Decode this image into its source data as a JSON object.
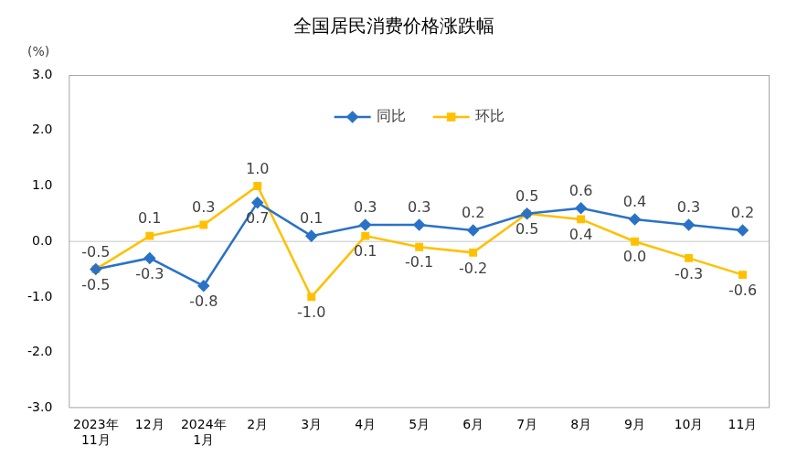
{
  "chart_data": {
    "type": "line",
    "title": "全国居民消费价格涨跌幅",
    "ylabel": "(%)",
    "categories": [
      [
        "2023年",
        "11月"
      ],
      "12月",
      [
        "2024年",
        "1月"
      ],
      "2月",
      "3月",
      "4月",
      "5月",
      "6月",
      "7月",
      "8月",
      "9月",
      "10月",
      "11月"
    ],
    "series": [
      {
        "name": "同比",
        "color": "#2a72c6",
        "marker": "diamond",
        "values": [
          -0.5,
          -0.3,
          -0.8,
          0.7,
          0.1,
          0.3,
          0.3,
          0.2,
          0.5,
          0.6,
          0.4,
          0.3,
          0.2
        ],
        "value_labels": [
          "-0.5",
          "-0.3",
          "-0.8",
          "0.7",
          "0.1",
          "0.3",
          "0.3",
          "0.2",
          "0.5",
          "0.6",
          "0.4",
          "0.3",
          "0.2"
        ]
      },
      {
        "name": "环比",
        "color": "#ffc000",
        "marker": "square",
        "values": [
          -0.5,
          0.1,
          0.3,
          1.0,
          -1.0,
          0.1,
          -0.1,
          -0.2,
          0.5,
          0.4,
          0.0,
          -0.3,
          -0.6
        ],
        "value_labels": [
          "-0.5",
          "0.1",
          "0.3",
          "1.0",
          "-1.0",
          "0.1",
          "-0.1",
          "-0.2",
          "0.5",
          "0.4",
          "0.0",
          "-0.3",
          "-0.6"
        ]
      }
    ],
    "ylim": [
      -3,
      3
    ],
    "yticks": [
      {
        "value": -3,
        "label": "-3.0"
      },
      {
        "value": -2,
        "label": "-2.0"
      },
      {
        "value": -1,
        "label": "-1.0"
      },
      {
        "value": 0,
        "label": "0.0"
      },
      {
        "value": 1,
        "label": "1.0"
      },
      {
        "value": 2,
        "label": "2.0"
      },
      {
        "value": 3,
        "label": "3.0"
      }
    ],
    "grid": false,
    "legend": "top",
    "data_labels": true
  }
}
